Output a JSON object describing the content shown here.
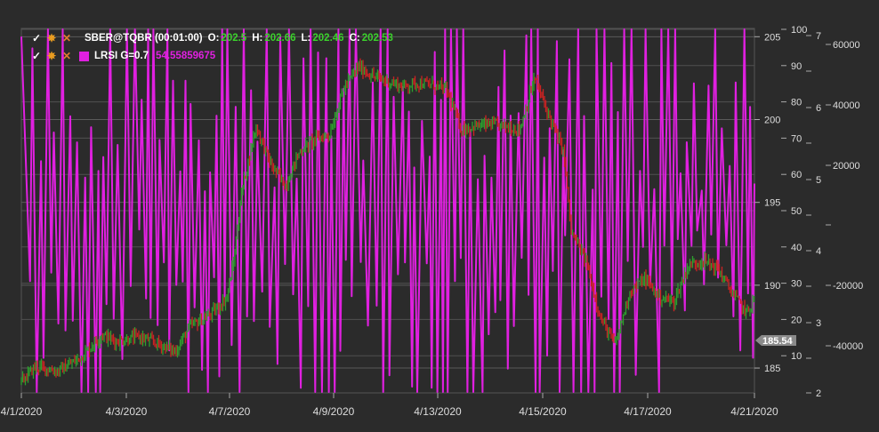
{
  "chart_data": {
    "type": "candlestick+line",
    "x_tick_labels": [
      "4/1/2020",
      "4/3/2020",
      "4/7/2020",
      "4/9/2020",
      "4/13/2020",
      "4/15/2020",
      "4/17/2020",
      "4/21/2020"
    ],
    "price_axis": {
      "ticks": [
        "205",
        "200",
        "195",
        "190",
        "185"
      ],
      "range": [
        183.5,
        205.5
      ]
    },
    "lrsi_axis": {
      "ticks": [
        "100",
        "90",
        "80",
        "70",
        "60",
        "50",
        "40",
        "30",
        "20",
        "10"
      ],
      "range": [
        0,
        100
      ]
    },
    "third_axis": {
      "ticks": [
        "7",
        "6",
        "5",
        "4",
        "3",
        "2"
      ]
    },
    "volume_axis": {
      "ticks": [
        "60000",
        "40000",
        "20000",
        "-20000",
        "-40000"
      ]
    },
    "price_path": [
      [
        0,
        184.2
      ],
      [
        0.02,
        185.1
      ],
      [
        0.05,
        184.8
      ],
      [
        0.08,
        185.6
      ],
      [
        0.11,
        187.0
      ],
      [
        0.13,
        186.6
      ],
      [
        0.16,
        186.9
      ],
      [
        0.19,
        186.4
      ],
      [
        0.21,
        186.0
      ],
      [
        0.23,
        187.5
      ],
      [
        0.26,
        188.3
      ],
      [
        0.28,
        189.2
      ],
      [
        0.29,
        191.5
      ],
      [
        0.3,
        195.5
      ],
      [
        0.32,
        199.6
      ],
      [
        0.34,
        197.3
      ],
      [
        0.36,
        196.0
      ],
      [
        0.38,
        198.1
      ],
      [
        0.4,
        198.8
      ],
      [
        0.42,
        199.1
      ],
      [
        0.44,
        201.9
      ],
      [
        0.46,
        203.2
      ],
      [
        0.48,
        202.6
      ],
      [
        0.5,
        202.3
      ],
      [
        0.52,
        202.0
      ],
      [
        0.54,
        202.2
      ],
      [
        0.56,
        202.1
      ],
      [
        0.58,
        201.8
      ],
      [
        0.6,
        199.4
      ],
      [
        0.62,
        199.6
      ],
      [
        0.64,
        199.7
      ],
      [
        0.66,
        199.6
      ],
      [
        0.68,
        199.4
      ],
      [
        0.7,
        202.5
      ],
      [
        0.72,
        200.2
      ],
      [
        0.74,
        198.0
      ],
      [
        0.75,
        193.2
      ],
      [
        0.77,
        191.5
      ],
      [
        0.79,
        188.0
      ],
      [
        0.81,
        186.4
      ],
      [
        0.83,
        189.6
      ],
      [
        0.85,
        190.4
      ],
      [
        0.87,
        189.3
      ],
      [
        0.89,
        189.0
      ],
      [
        0.91,
        191.2
      ],
      [
        0.93,
        191.5
      ],
      [
        0.95,
        191.0
      ],
      [
        0.97,
        189.5
      ],
      [
        0.99,
        188.3
      ],
      [
        1.0,
        189.2
      ]
    ],
    "last_price": "185.54",
    "lrsi": {
      "name": "LRSI G=0.7",
      "value": "54.55859675",
      "color": "#e020e0"
    },
    "instrument": {
      "symbol": "SBER@TQBR (00:01:00)",
      "open": "202.5",
      "high": "202.66",
      "low": "202.46",
      "close": "202.53"
    },
    "grid": true
  },
  "legend": {
    "row1": {
      "symbol": "SBER@TQBR (00:01:00)",
      "o_label": "O:",
      "o_val": "202.5",
      "h_label": "H:",
      "h_val": "202.66",
      "l_label": "L:",
      "l_val": "202.46",
      "c_label": "C:",
      "c_val": "202.53"
    },
    "row2": {
      "name": "LRSI G=0.7",
      "value": "54.55859675"
    },
    "icons": [
      "check-icon",
      "gear-icon",
      "close-icon"
    ]
  },
  "colors": {
    "background": "#2b2b2b",
    "grid": "#4a4a4a",
    "lrsi": "#e020e0",
    "price_up": "#2e9e2e",
    "price_down": "#cc2222",
    "legend_value": "#3bd12c"
  }
}
